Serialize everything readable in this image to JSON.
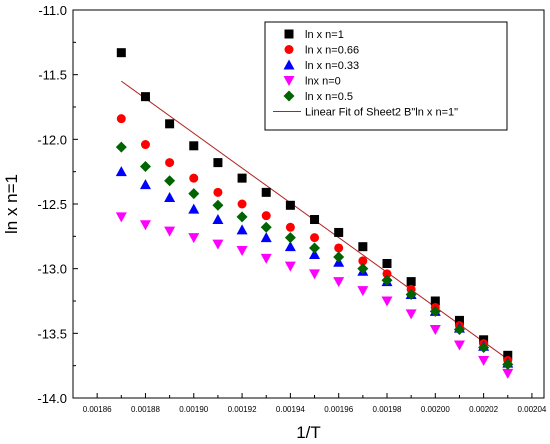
{
  "chart_data": {
    "type": "scatter",
    "xlabel": "1/T",
    "ylabel": "ln x  n=1",
    "xlim": [
      0.00185,
      0.002045
    ],
    "ylim": [
      -14.0,
      -11.0
    ],
    "x_ticks": [
      "0.00186",
      "0.00188",
      "0.00190",
      "0.00192",
      "0.00194",
      "0.00196",
      "0.00198",
      "0.00200",
      "0.00202",
      "0.00204"
    ],
    "y_ticks": [
      "-11.0",
      "-11.5",
      "-12.0",
      "-12.5",
      "-13.0",
      "-13.5",
      "-14.0"
    ],
    "x": [
      0.00187,
      0.00188,
      0.00189,
      0.0019,
      0.00191,
      0.00192,
      0.00193,
      0.00194,
      0.00195,
      0.00196,
      0.00197,
      0.00198,
      0.00199,
      0.002,
      0.00201,
      0.00202,
      0.00203
    ],
    "series": [
      {
        "name": "ln x  n=1",
        "marker": "square",
        "color": "#000000",
        "values": [
          -11.33,
          -11.67,
          -11.88,
          -12.05,
          -12.18,
          -12.3,
          -12.41,
          -12.51,
          -12.62,
          -12.72,
          -12.83,
          -12.96,
          -13.1,
          -13.25,
          -13.4,
          -13.55,
          -13.67
        ]
      },
      {
        "name": "ln x  n=0.66",
        "marker": "circle",
        "color": "#ff0000",
        "values": [
          -11.84,
          -12.04,
          -12.18,
          -12.3,
          -12.41,
          -12.5,
          -12.59,
          -12.68,
          -12.76,
          -12.84,
          -12.94,
          -13.04,
          -13.16,
          -13.3,
          -13.44,
          -13.58,
          -13.71
        ]
      },
      {
        "name": "ln x  n=0.33",
        "marker": "triangle-up",
        "color": "#0000ff",
        "values": [
          -12.25,
          -12.35,
          -12.45,
          -12.54,
          -12.62,
          -12.7,
          -12.76,
          -12.83,
          -12.89,
          -12.95,
          -13.02,
          -13.1,
          -13.2,
          -13.33,
          -13.46,
          -13.6,
          -13.73
        ]
      },
      {
        "name": "lnx  n=0",
        "marker": "triangle-down",
        "color": "#ff00ff",
        "values": [
          -12.6,
          -12.66,
          -12.71,
          -12.76,
          -12.81,
          -12.86,
          -12.92,
          -12.98,
          -13.04,
          -13.1,
          -13.17,
          -13.25,
          -13.35,
          -13.47,
          -13.59,
          -13.71,
          -13.81
        ]
      },
      {
        "name": "ln x  n=0.5",
        "marker": "diamond",
        "color": "#006400",
        "values": [
          -12.06,
          -12.21,
          -12.32,
          -12.42,
          -12.51,
          -12.6,
          -12.68,
          -12.76,
          -12.84,
          -12.91,
          -13.0,
          -13.09,
          -13.2,
          -13.33,
          -13.47,
          -13.61,
          -13.74
        ]
      }
    ],
    "fit": {
      "name": "Linear Fit of Sheet2 B\"ln x  n=1\"",
      "color": "#b22222",
      "x_range": [
        0.00187,
        0.00203
      ],
      "y_range": [
        -11.55,
        -13.7
      ]
    },
    "legend_position": "top-right",
    "grid": false
  }
}
